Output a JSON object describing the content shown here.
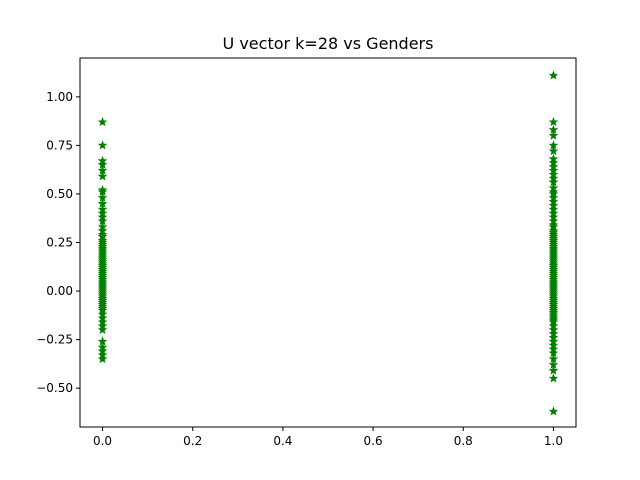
{
  "chart_data": {
    "type": "scatter",
    "title": "U vector k=28 vs Genders",
    "xlabel": "",
    "ylabel": "",
    "xlim": [
      -0.05,
      1.05
    ],
    "ylim": [
      -0.7,
      1.2
    ],
    "xticks": [
      0.0,
      0.2,
      0.4,
      0.6,
      0.8,
      1.0
    ],
    "xtick_labels": [
      "0.0",
      "0.2",
      "0.4",
      "0.6",
      "0.8",
      "1.0"
    ],
    "yticks": [
      -0.5,
      -0.25,
      0.0,
      0.25,
      0.5,
      0.75,
      1.0
    ],
    "ytick_labels": [
      "−0.50",
      "−0.25",
      "0.00",
      "0.25",
      "0.50",
      "0.75",
      "1.00"
    ],
    "grid": false,
    "legend": false,
    "marker": "star",
    "marker_color": "#008000",
    "series": [
      {
        "x": 0,
        "values": [
          0.87,
          0.75,
          0.67,
          0.65,
          0.62,
          0.59,
          0.52,
          0.51,
          0.48,
          0.45,
          0.42,
          0.4,
          0.38,
          0.36,
          0.33,
          0.31,
          0.29,
          0.28,
          0.26,
          0.25,
          0.24,
          0.23,
          0.22,
          0.21,
          0.2,
          0.19,
          0.18,
          0.17,
          0.16,
          0.15,
          0.14,
          0.13,
          0.12,
          0.11,
          0.1,
          0.09,
          0.08,
          0.07,
          0.06,
          0.05,
          0.04,
          0.03,
          0.02,
          0.01,
          0.0,
          -0.01,
          -0.02,
          -0.03,
          -0.04,
          -0.05,
          -0.06,
          -0.07,
          -0.08,
          -0.09,
          -0.1,
          -0.12,
          -0.14,
          -0.16,
          -0.18,
          -0.2,
          -0.26,
          -0.29,
          -0.31,
          -0.33,
          -0.35
        ]
      },
      {
        "x": 1,
        "values": [
          1.11,
          0.87,
          0.83,
          0.8,
          0.75,
          0.72,
          0.68,
          0.66,
          0.64,
          0.62,
          0.6,
          0.58,
          0.56,
          0.53,
          0.51,
          0.5,
          0.48,
          0.46,
          0.44,
          0.42,
          0.4,
          0.38,
          0.36,
          0.34,
          0.33,
          0.31,
          0.3,
          0.29,
          0.28,
          0.27,
          0.26,
          0.25,
          0.24,
          0.23,
          0.22,
          0.21,
          0.2,
          0.19,
          0.18,
          0.17,
          0.16,
          0.15,
          0.14,
          0.13,
          0.12,
          0.11,
          0.1,
          0.09,
          0.08,
          0.07,
          0.06,
          0.05,
          0.04,
          0.03,
          0.02,
          0.01,
          0.0,
          -0.01,
          -0.02,
          -0.03,
          -0.04,
          -0.05,
          -0.06,
          -0.07,
          -0.08,
          -0.09,
          -0.1,
          -0.11,
          -0.12,
          -0.13,
          -0.14,
          -0.15,
          -0.16,
          -0.18,
          -0.2,
          -0.22,
          -0.24,
          -0.26,
          -0.28,
          -0.3,
          -0.32,
          -0.35,
          -0.38,
          -0.41,
          -0.45,
          -0.62
        ]
      }
    ]
  }
}
